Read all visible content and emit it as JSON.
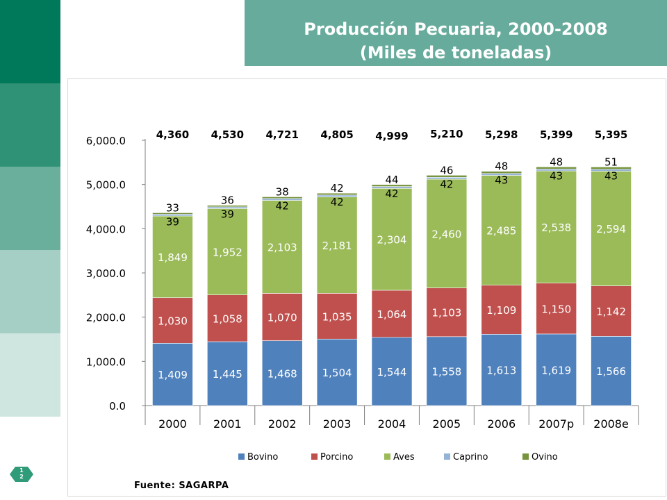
{
  "title": {
    "line1": "Producción Pecuaria, 2000-2008",
    "line2": "(Miles de toneladas)"
  },
  "page_number": {
    "top": "1",
    "bottom": "2"
  },
  "source": "Fuente:  SAGARPA",
  "colors": {
    "sidebar": [
      "#00785a",
      "#2f9175",
      "#6aae9c",
      "#a5cfc4",
      "#cfe6e0",
      "#ffffff"
    ],
    "title_bg": "#66ab9b",
    "badge": "#2f9b78"
  },
  "chart_data": {
    "type": "bar",
    "stacked": true,
    "categories": [
      "2000",
      "2001",
      "2002",
      "2003",
      "2004",
      "2005",
      "2006",
      "2007p",
      "2008e"
    ],
    "series": [
      {
        "name": "Bovino",
        "color": "#4f81bd",
        "values": [
          1409,
          1445,
          1468,
          1504,
          1544,
          1558,
          1613,
          1619,
          1566
        ],
        "labels": [
          "1,409",
          "1,445",
          "1,468",
          "1,504",
          "1,544",
          "1,558",
          "1,613",
          "1,619",
          "1,566"
        ]
      },
      {
        "name": "Porcino",
        "color": "#c0504d",
        "values": [
          1030,
          1058,
          1070,
          1035,
          1064,
          1103,
          1109,
          1150,
          1142
        ],
        "labels": [
          "1,030",
          "1,058",
          "1,070",
          "1,035",
          "1,064",
          "1,103",
          "1,109",
          "1,150",
          "1,142"
        ]
      },
      {
        "name": "Aves",
        "color": "#9bbb59",
        "values": [
          1849,
          1952,
          2103,
          2181,
          2304,
          2460,
          2485,
          2538,
          2594
        ],
        "labels": [
          "1,849",
          "1,952",
          "2,103",
          "2,181",
          "2,304",
          "2,460",
          "2,485",
          "2,538",
          "2,594"
        ]
      },
      {
        "name": "Caprino",
        "color": "#95b3d7",
        "values": [
          39,
          39,
          42,
          42,
          42,
          42,
          43,
          43,
          43
        ],
        "labels": [
          "39",
          "39",
          "42",
          "42",
          "42",
          "42",
          "43",
          "43",
          "43"
        ]
      },
      {
        "name": "Ovino",
        "color": "#77933c",
        "values": [
          33,
          36,
          38,
          42,
          44,
          46,
          48,
          48,
          51
        ],
        "labels": [
          "33",
          "36",
          "38",
          "42",
          "44",
          "46",
          "48",
          "48",
          "51"
        ]
      }
    ],
    "totals": [
      "4,360",
      "4,530",
      "4,721",
      "4,805",
      "4,999",
      "5,210",
      "5,298",
      "5,399",
      "5,395"
    ],
    "ylim": [
      0,
      6000
    ],
    "yticks": [
      0,
      1000,
      2000,
      3000,
      4000,
      5000,
      6000
    ],
    "ytick_labels": [
      "0.0",
      "1,000.0",
      "2,000.0",
      "3,000.0",
      "4,000.0",
      "5,000.0",
      "6,000.0"
    ],
    "legend_position": "bottom",
    "grid": false
  }
}
